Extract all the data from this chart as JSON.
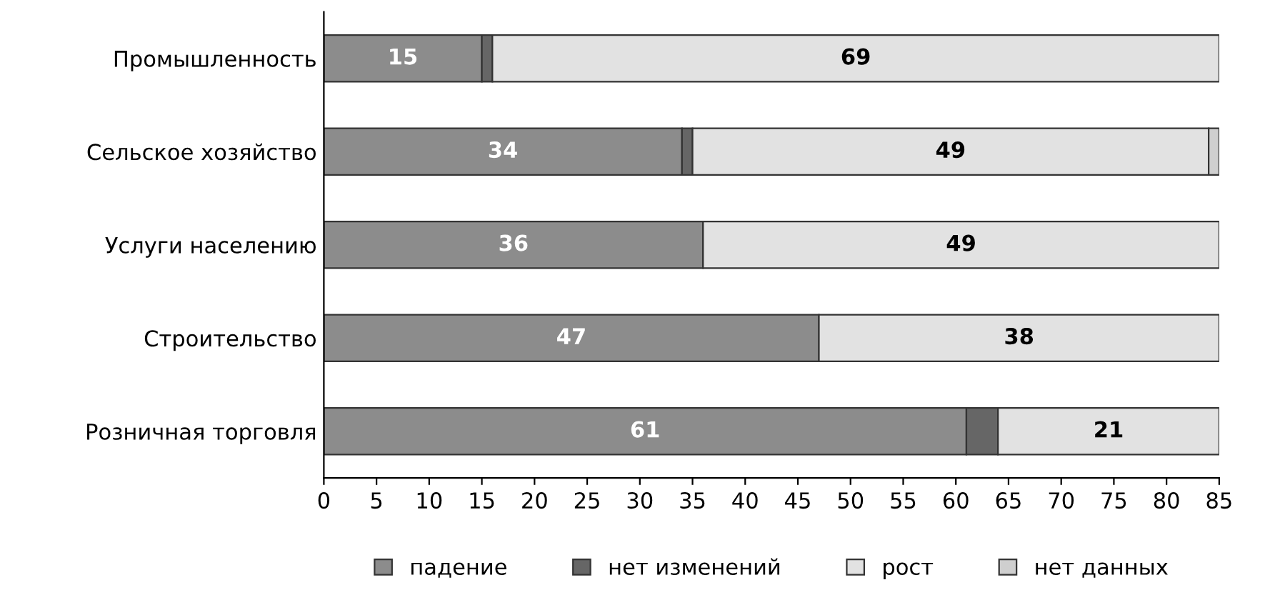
{
  "chart_data": {
    "type": "bar",
    "orientation": "horizontal",
    "stacked": true,
    "categories": [
      "Промышленность",
      "Сельское хозяйство",
      "Услуги населению",
      "Строительство",
      "Розничная торговля"
    ],
    "series": [
      {
        "name": "падение",
        "color": "#8c8c8c",
        "values": [
          15,
          34,
          36,
          47,
          61
        ],
        "value_labels": [
          "15",
          "34",
          "36",
          "47",
          "61"
        ]
      },
      {
        "name": "нет изменений",
        "color": "#666666",
        "values": [
          1,
          1,
          0,
          0,
          3
        ],
        "value_labels": [
          null,
          null,
          null,
          null,
          null
        ]
      },
      {
        "name": "рост",
        "color": "#e2e2e2",
        "values": [
          69,
          49,
          49,
          38,
          21
        ],
        "value_labels": [
          "69",
          "49",
          "49",
          "38",
          "21"
        ]
      },
      {
        "name": "нет данных",
        "color": "#cfcfcf",
        "values": [
          0,
          1,
          0,
          0,
          0
        ],
        "value_labels": [
          null,
          null,
          null,
          null,
          null
        ]
      }
    ],
    "xlim": [
      0,
      85
    ],
    "xticks": [
      0,
      5,
      10,
      15,
      20,
      25,
      30,
      35,
      40,
      45,
      50,
      55,
      60,
      65,
      70,
      75,
      80,
      85
    ],
    "legend": "bottom",
    "grid": false
  }
}
